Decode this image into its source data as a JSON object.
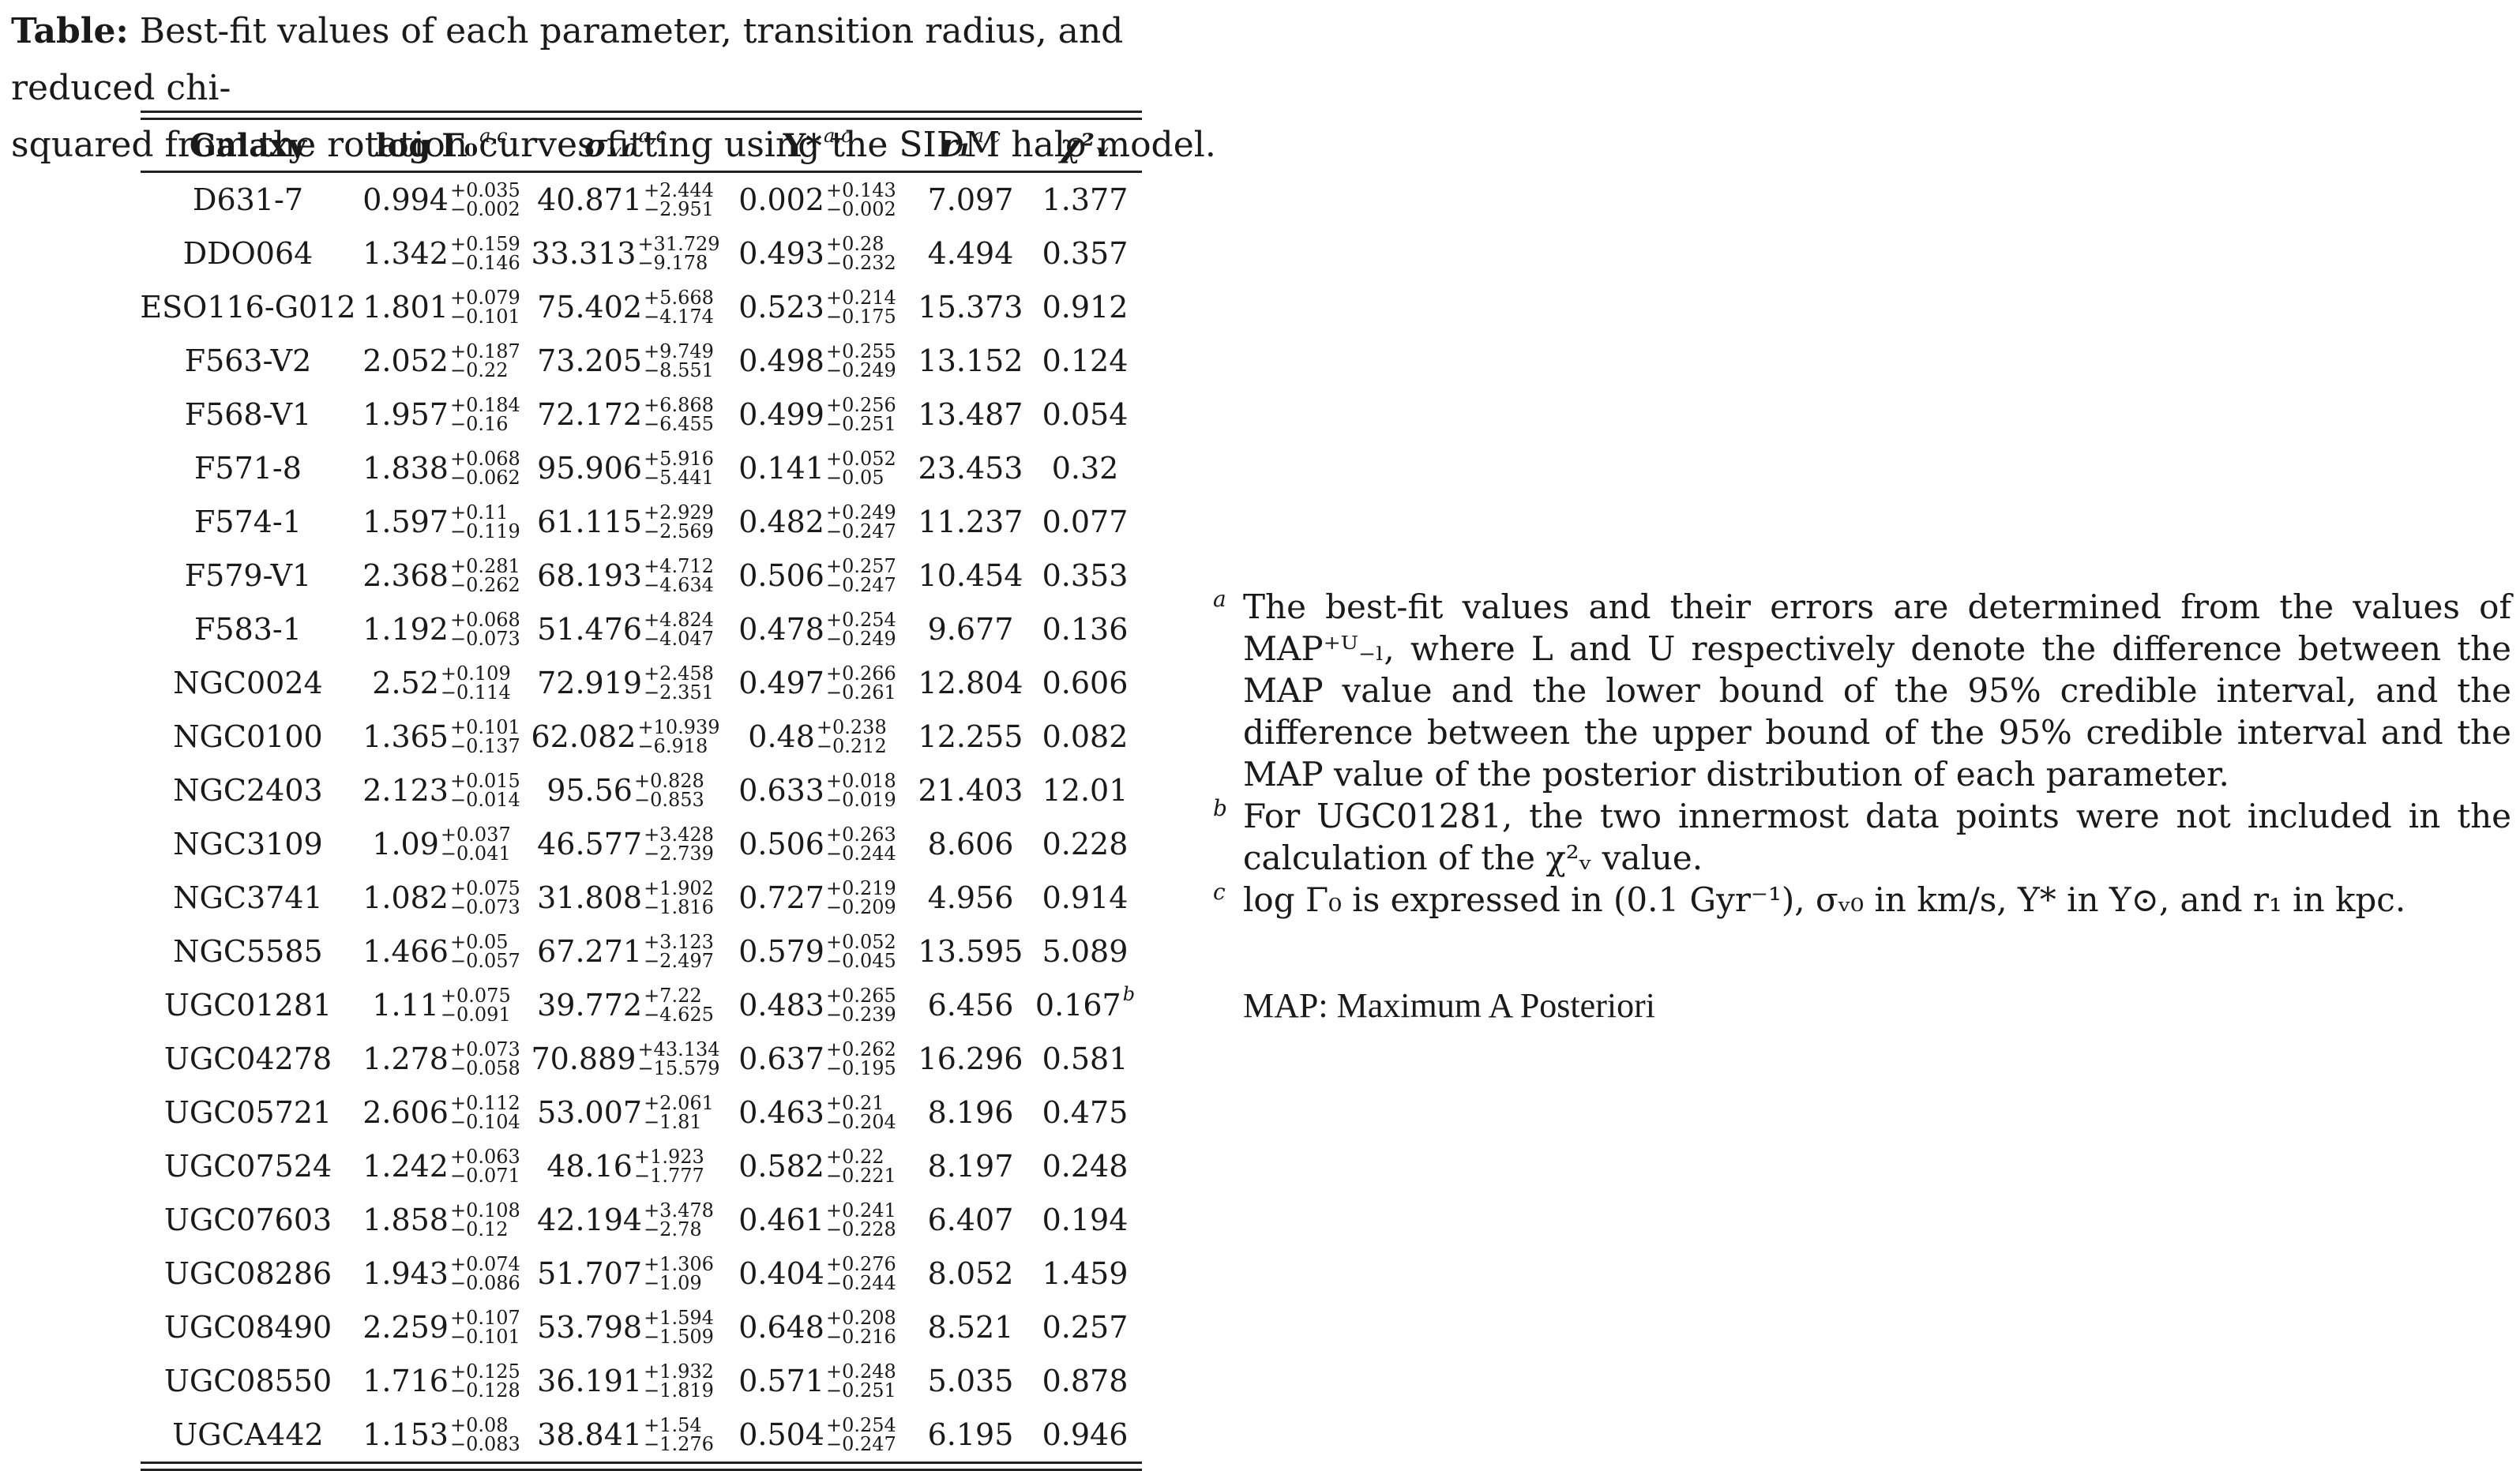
{
  "caption": {
    "label": "Table:",
    "line1": "Best-fit values of each parameter, transition radius, and reduced chi-",
    "line2": "squared from the rotation curves fitting using the SIDM halo model."
  },
  "headers": {
    "galaxy": "Galaxy",
    "log_gamma": "log Γ₀",
    "sigma": "σᵥ₀",
    "upsilon": "Υ*",
    "r1": "r₁",
    "chi2": "χ²ᵥ",
    "footnote_marks": "a,c"
  },
  "rows": [
    {
      "galaxy": "D631-7",
      "g": "0.994",
      "g_up": "+0.035",
      "g_lo": "−0.002",
      "s": "40.871",
      "s_up": "+2.444",
      "s_lo": "−2.951",
      "u": "0.002",
      "u_up": "+0.143",
      "u_lo": "−0.002",
      "r1": "7.097",
      "chi2": "1.377",
      "chi2_note": ""
    },
    {
      "galaxy": "DDO064",
      "g": "1.342",
      "g_up": "+0.159",
      "g_lo": "−0.146",
      "s": "33.313",
      "s_up": "+31.729",
      "s_lo": "−9.178",
      "u": "0.493",
      "u_up": "+0.28",
      "u_lo": "−0.232",
      "r1": "4.494",
      "chi2": "0.357",
      "chi2_note": ""
    },
    {
      "galaxy": "ESO116-G012",
      "g": "1.801",
      "g_up": "+0.079",
      "g_lo": "−0.101",
      "s": "75.402",
      "s_up": "+5.668",
      "s_lo": "−4.174",
      "u": "0.523",
      "u_up": "+0.214",
      "u_lo": "−0.175",
      "r1": "15.373",
      "chi2": "0.912",
      "chi2_note": ""
    },
    {
      "galaxy": "F563-V2",
      "g": "2.052",
      "g_up": "+0.187",
      "g_lo": "−0.22",
      "s": "73.205",
      "s_up": "+9.749",
      "s_lo": "−8.551",
      "u": "0.498",
      "u_up": "+0.255",
      "u_lo": "−0.249",
      "r1": "13.152",
      "chi2": "0.124",
      "chi2_note": ""
    },
    {
      "galaxy": "F568-V1",
      "g": "1.957",
      "g_up": "+0.184",
      "g_lo": "−0.16",
      "s": "72.172",
      "s_up": "+6.868",
      "s_lo": "−6.455",
      "u": "0.499",
      "u_up": "+0.256",
      "u_lo": "−0.251",
      "r1": "13.487",
      "chi2": "0.054",
      "chi2_note": ""
    },
    {
      "galaxy": "F571-8",
      "g": "1.838",
      "g_up": "+0.068",
      "g_lo": "−0.062",
      "s": "95.906",
      "s_up": "+5.916",
      "s_lo": "−5.441",
      "u": "0.141",
      "u_up": "+0.052",
      "u_lo": "−0.05",
      "r1": "23.453",
      "chi2": "0.32",
      "chi2_note": ""
    },
    {
      "galaxy": "F574-1",
      "g": "1.597",
      "g_up": "+0.11",
      "g_lo": "−0.119",
      "s": "61.115",
      "s_up": "+2.929",
      "s_lo": "−2.569",
      "u": "0.482",
      "u_up": "+0.249",
      "u_lo": "−0.247",
      "r1": "11.237",
      "chi2": "0.077",
      "chi2_note": ""
    },
    {
      "galaxy": "F579-V1",
      "g": "2.368",
      "g_up": "+0.281",
      "g_lo": "−0.262",
      "s": "68.193",
      "s_up": "+4.712",
      "s_lo": "−4.634",
      "u": "0.506",
      "u_up": "+0.257",
      "u_lo": "−0.247",
      "r1": "10.454",
      "chi2": "0.353",
      "chi2_note": ""
    },
    {
      "galaxy": "F583-1",
      "g": "1.192",
      "g_up": "+0.068",
      "g_lo": "−0.073",
      "s": "51.476",
      "s_up": "+4.824",
      "s_lo": "−4.047",
      "u": "0.478",
      "u_up": "+0.254",
      "u_lo": "−0.249",
      "r1": "9.677",
      "chi2": "0.136",
      "chi2_note": ""
    },
    {
      "galaxy": "NGC0024",
      "g": "2.52",
      "g_up": "+0.109",
      "g_lo": "−0.114",
      "s": "72.919",
      "s_up": "+2.458",
      "s_lo": "−2.351",
      "u": "0.497",
      "u_up": "+0.266",
      "u_lo": "−0.261",
      "r1": "12.804",
      "chi2": "0.606",
      "chi2_note": ""
    },
    {
      "galaxy": "NGC0100",
      "g": "1.365",
      "g_up": "+0.101",
      "g_lo": "−0.137",
      "s": "62.082",
      "s_up": "+10.939",
      "s_lo": "−6.918",
      "u": "0.48",
      "u_up": "+0.238",
      "u_lo": "−0.212",
      "r1": "12.255",
      "chi2": "0.082",
      "chi2_note": ""
    },
    {
      "galaxy": "NGC2403",
      "g": "2.123",
      "g_up": "+0.015",
      "g_lo": "−0.014",
      "s": "95.56",
      "s_up": "+0.828",
      "s_lo": "−0.853",
      "u": "0.633",
      "u_up": "+0.018",
      "u_lo": "−0.019",
      "r1": "21.403",
      "chi2": "12.01",
      "chi2_note": ""
    },
    {
      "galaxy": "NGC3109",
      "g": "1.09",
      "g_up": "+0.037",
      "g_lo": "−0.041",
      "s": "46.577",
      "s_up": "+3.428",
      "s_lo": "−2.739",
      "u": "0.506",
      "u_up": "+0.263",
      "u_lo": "−0.244",
      "r1": "8.606",
      "chi2": "0.228",
      "chi2_note": ""
    },
    {
      "galaxy": "NGC3741",
      "g": "1.082",
      "g_up": "+0.075",
      "g_lo": "−0.073",
      "s": "31.808",
      "s_up": "+1.902",
      "s_lo": "−1.816",
      "u": "0.727",
      "u_up": "+0.219",
      "u_lo": "−0.209",
      "r1": "4.956",
      "chi2": "0.914",
      "chi2_note": ""
    },
    {
      "galaxy": "NGC5585",
      "g": "1.466",
      "g_up": "+0.05",
      "g_lo": "−0.057",
      "s": "67.271",
      "s_up": "+3.123",
      "s_lo": "−2.497",
      "u": "0.579",
      "u_up": "+0.052",
      "u_lo": "−0.045",
      "r1": "13.595",
      "chi2": "5.089",
      "chi2_note": ""
    },
    {
      "galaxy": "UGC01281",
      "g": "1.11",
      "g_up": "+0.075",
      "g_lo": "−0.091",
      "s": "39.772",
      "s_up": "+7.22",
      "s_lo": "−4.625",
      "u": "0.483",
      "u_up": "+0.265",
      "u_lo": "−0.239",
      "r1": "6.456",
      "chi2": "0.167",
      "chi2_note": "b"
    },
    {
      "galaxy": "UGC04278",
      "g": "1.278",
      "g_up": "+0.073",
      "g_lo": "−0.058",
      "s": "70.889",
      "s_up": "+43.134",
      "s_lo": "−15.579",
      "u": "0.637",
      "u_up": "+0.262",
      "u_lo": "−0.195",
      "r1": "16.296",
      "chi2": "0.581",
      "chi2_note": ""
    },
    {
      "galaxy": "UGC05721",
      "g": "2.606",
      "g_up": "+0.112",
      "g_lo": "−0.104",
      "s": "53.007",
      "s_up": "+2.061",
      "s_lo": "−1.81",
      "u": "0.463",
      "u_up": "+0.21",
      "u_lo": "−0.204",
      "r1": "8.196",
      "chi2": "0.475",
      "chi2_note": ""
    },
    {
      "galaxy": "UGC07524",
      "g": "1.242",
      "g_up": "+0.063",
      "g_lo": "−0.071",
      "s": "48.16",
      "s_up": "+1.923",
      "s_lo": "−1.777",
      "u": "0.582",
      "u_up": "+0.22",
      "u_lo": "−0.221",
      "r1": "8.197",
      "chi2": "0.248",
      "chi2_note": ""
    },
    {
      "galaxy": "UGC07603",
      "g": "1.858",
      "g_up": "+0.108",
      "g_lo": "−0.12",
      "s": "42.194",
      "s_up": "+3.478",
      "s_lo": "−2.78",
      "u": "0.461",
      "u_up": "+0.241",
      "u_lo": "−0.228",
      "r1": "6.407",
      "chi2": "0.194",
      "chi2_note": ""
    },
    {
      "galaxy": "UGC08286",
      "g": "1.943",
      "g_up": "+0.074",
      "g_lo": "−0.086",
      "s": "51.707",
      "s_up": "+1.306",
      "s_lo": "−1.09",
      "u": "0.404",
      "u_up": "+0.276",
      "u_lo": "−0.244",
      "r1": "8.052",
      "chi2": "1.459",
      "chi2_note": ""
    },
    {
      "galaxy": "UGC08490",
      "g": "2.259",
      "g_up": "+0.107",
      "g_lo": "−0.101",
      "s": "53.798",
      "s_up": "+1.594",
      "s_lo": "−1.509",
      "u": "0.648",
      "u_up": "+0.208",
      "u_lo": "−0.216",
      "r1": "8.521",
      "chi2": "0.257",
      "chi2_note": ""
    },
    {
      "galaxy": "UGC08550",
      "g": "1.716",
      "g_up": "+0.125",
      "g_lo": "−0.128",
      "s": "36.191",
      "s_up": "+1.932",
      "s_lo": "−1.819",
      "u": "0.571",
      "u_up": "+0.248",
      "u_lo": "−0.251",
      "r1": "5.035",
      "chi2": "0.878",
      "chi2_note": ""
    },
    {
      "galaxy": "UGCA442",
      "g": "1.153",
      "g_up": "+0.08",
      "g_lo": "−0.083",
      "s": "38.841",
      "s_up": "+1.54",
      "s_lo": "−1.276",
      "u": "0.504",
      "u_up": "+0.254",
      "u_lo": "−0.247",
      "r1": "6.195",
      "chi2": "0.946",
      "chi2_note": ""
    }
  ],
  "notes": {
    "a_mark": "a",
    "a": "The best-fit values and their errors are determined from the values of MAP⁺ᵁ₋ₗ, where L and U respectively denote the difference between the MAP value and the lower bound of the 95% credible interval, and the difference between the upper bound of the 95% credible interval and the MAP value of the posterior distribution of each parameter.",
    "b_mark": "b",
    "b": "For UGC01281, the two innermost data points were not included in the calculation of the χ²ᵥ value.",
    "c_mark": "c",
    "c": "log Γ₀ is expressed in (0.1 Gyr⁻¹), σᵥ₀ in km/s, Υ* in Υ⊙, and r₁ in kpc.",
    "map_def": "MAP: Maximum A Posteriori"
  }
}
